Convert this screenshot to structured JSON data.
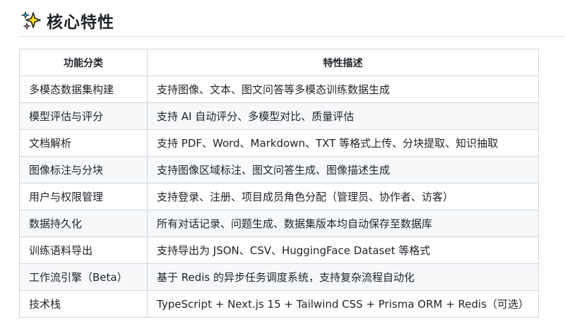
{
  "section": {
    "title": "核心特性",
    "icon": "sparkles-icon"
  },
  "table": {
    "headers": [
      "功能分类",
      "特性描述"
    ],
    "rows": [
      [
        "多模态数据集构建",
        "支持图像、文本、图文问答等多模态训练数据生成"
      ],
      [
        "模型评估与评分",
        "支持 AI 自动评分、多模型对比、质量评估"
      ],
      [
        "文档解析",
        "支持 PDF、Word、Markdown、TXT 等格式上传、分块提取、知识抽取"
      ],
      [
        "图像标注与分块",
        "支持图像区域标注、图文问答生成、图像描述生成"
      ],
      [
        "用户与权限管理",
        "支持登录、注册、项目成员角色分配（管理员、协作者、访客）"
      ],
      [
        "数据持久化",
        "所有对话记录、问题生成、数据集版本均自动保存至数据库"
      ],
      [
        "训练语料导出",
        "支持导出为 JSON、CSV、HuggingFace Dataset 等格式"
      ],
      [
        "工作流引擎（Beta）",
        "基于 Redis 的异步任务调度系统，支持复杂流程自动化"
      ],
      [
        "技术栈",
        "TypeScript + Next.js 15 + Tailwind CSS + Prisma ORM + Redis（可选）"
      ]
    ]
  }
}
